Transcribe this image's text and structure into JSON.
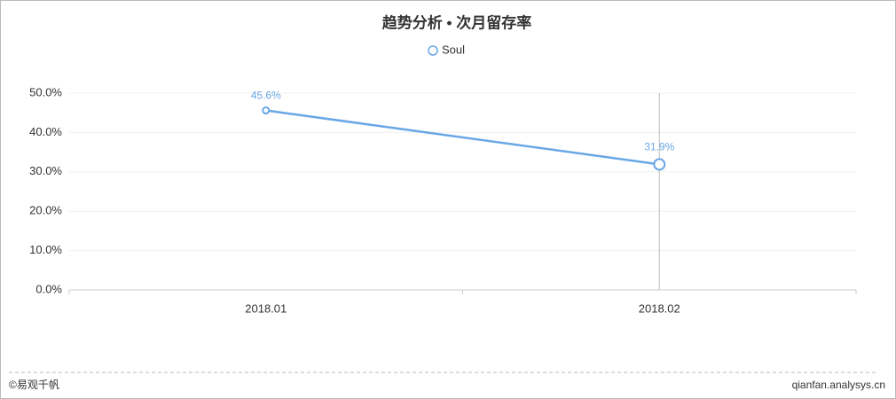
{
  "chart_data": {
    "type": "line",
    "title": "趋势分析 • 次月留存率",
    "categories": [
      "2018.01",
      "2018.02"
    ],
    "series": [
      {
        "name": "Soul",
        "color": "#6aa7e6",
        "values": [
          45.6,
          31.9
        ],
        "value_labels": [
          "45.6%",
          "31.9%"
        ]
      }
    ],
    "ylim": [
      0,
      50
    ],
    "yticks": [
      {
        "value": 0,
        "label": "0.0%"
      },
      {
        "value": 10,
        "label": "10.0%"
      },
      {
        "value": 20,
        "label": "20.0%"
      },
      {
        "value": 30,
        "label": "30.0%"
      },
      {
        "value": 40,
        "label": "40.0%"
      },
      {
        "value": 50,
        "label": "50.0%"
      }
    ],
    "grid": true
  },
  "footer": {
    "left": "©易观千帆",
    "right": "qianfan.analysys.cn"
  }
}
